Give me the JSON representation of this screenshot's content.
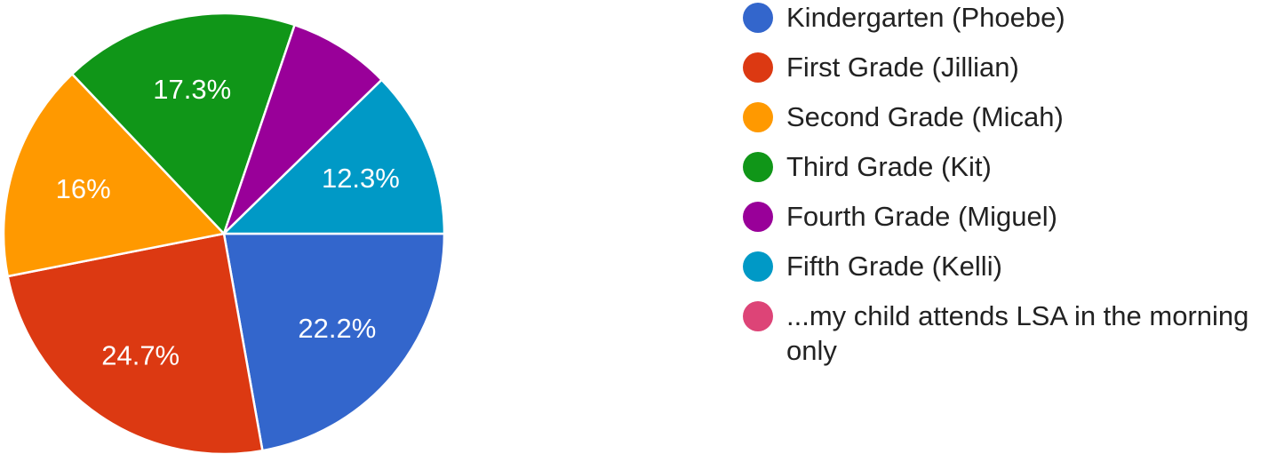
{
  "chart_data": {
    "type": "pie",
    "legend_position": "right",
    "start_angle": "3 o'clock, clockwise",
    "slices": [
      {
        "label": "Kindergarten (Phoebe)",
        "value": 22.2,
        "value_label": "22.2%",
        "color": "#3366cc"
      },
      {
        "label": "First Grade (Jillian)",
        "value": 24.7,
        "value_label": "24.7%",
        "color": "#dc3912"
      },
      {
        "label": "Second Grade (Micah)",
        "value": 16.0,
        "value_label": "16%",
        "color": "#ff9900"
      },
      {
        "label": "Third Grade (Kit)",
        "value": 17.3,
        "value_label": "17.3%",
        "color": "#109618"
      },
      {
        "label": "Fourth Grade (Miguel)",
        "value": 7.5,
        "value_label": "",
        "color": "#990099"
      },
      {
        "label": "Fifth Grade (Kelli)",
        "value": 12.3,
        "value_label": "12.3%",
        "color": "#0099c6"
      },
      {
        "label": "...my child attends LSA in the morning only",
        "value": 0,
        "value_label": "",
        "color": "#dd4477"
      }
    ]
  }
}
